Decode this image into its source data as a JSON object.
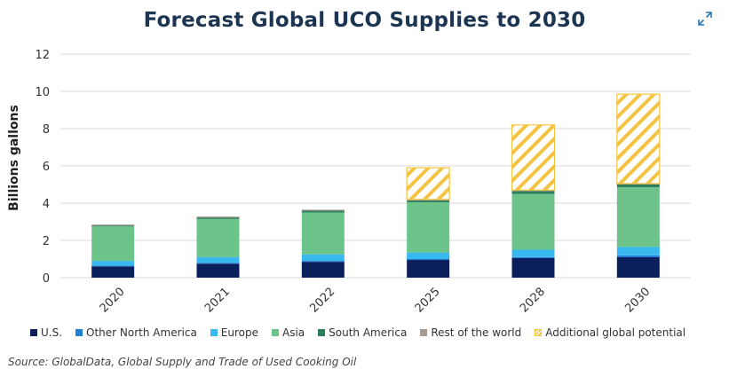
{
  "header": {
    "title": "Forecast Global UCO Supplies to 2030",
    "expand_icon": "expand-icon"
  },
  "source": "Source: GlobalData, Global Supply and Trade of Used Cooking Oil",
  "chart_data": {
    "type": "bar",
    "stacked": true,
    "title": "Forecast Global UCO Supplies to 2030",
    "xlabel": "",
    "ylabel": "Billions gallons",
    "ylim": [
      0,
      12
    ],
    "yticks": [
      "0",
      "2",
      "4",
      "6",
      "8",
      "10",
      "12"
    ],
    "grid": true,
    "legend_position": "bottom",
    "categories": [
      "2020",
      "2021",
      "2022",
      "2025",
      "2028",
      "2030"
    ],
    "series": [
      {
        "name": "U.S.",
        "color": "#0a1f5c",
        "values": [
          0.6,
          0.75,
          0.85,
          0.95,
          1.05,
          1.1
        ]
      },
      {
        "name": "Other North America",
        "color": "#1f7fd6",
        "values": [
          0.05,
          0.05,
          0.05,
          0.05,
          0.05,
          0.1
        ]
      },
      {
        "name": "Europe",
        "color": "#39b8f0",
        "values": [
          0.25,
          0.3,
          0.35,
          0.35,
          0.4,
          0.45
        ]
      },
      {
        "name": "Asia",
        "color": "#6cc48a",
        "values": [
          1.85,
          2.05,
          2.25,
          2.7,
          3.0,
          3.2
        ]
      },
      {
        "name": "South America",
        "color": "#2e7d5b",
        "values": [
          0.05,
          0.08,
          0.1,
          0.1,
          0.15,
          0.15
        ]
      },
      {
        "name": "Rest of the world",
        "color": "#a69a8f",
        "values": [
          0.05,
          0.05,
          0.05,
          0.05,
          0.05,
          0.05
        ]
      },
      {
        "name": "Additional global potential",
        "color": "#f5c342",
        "pattern": "hatch",
        "values": [
          0,
          0,
          0,
          1.7,
          3.5,
          4.8
        ]
      }
    ]
  }
}
